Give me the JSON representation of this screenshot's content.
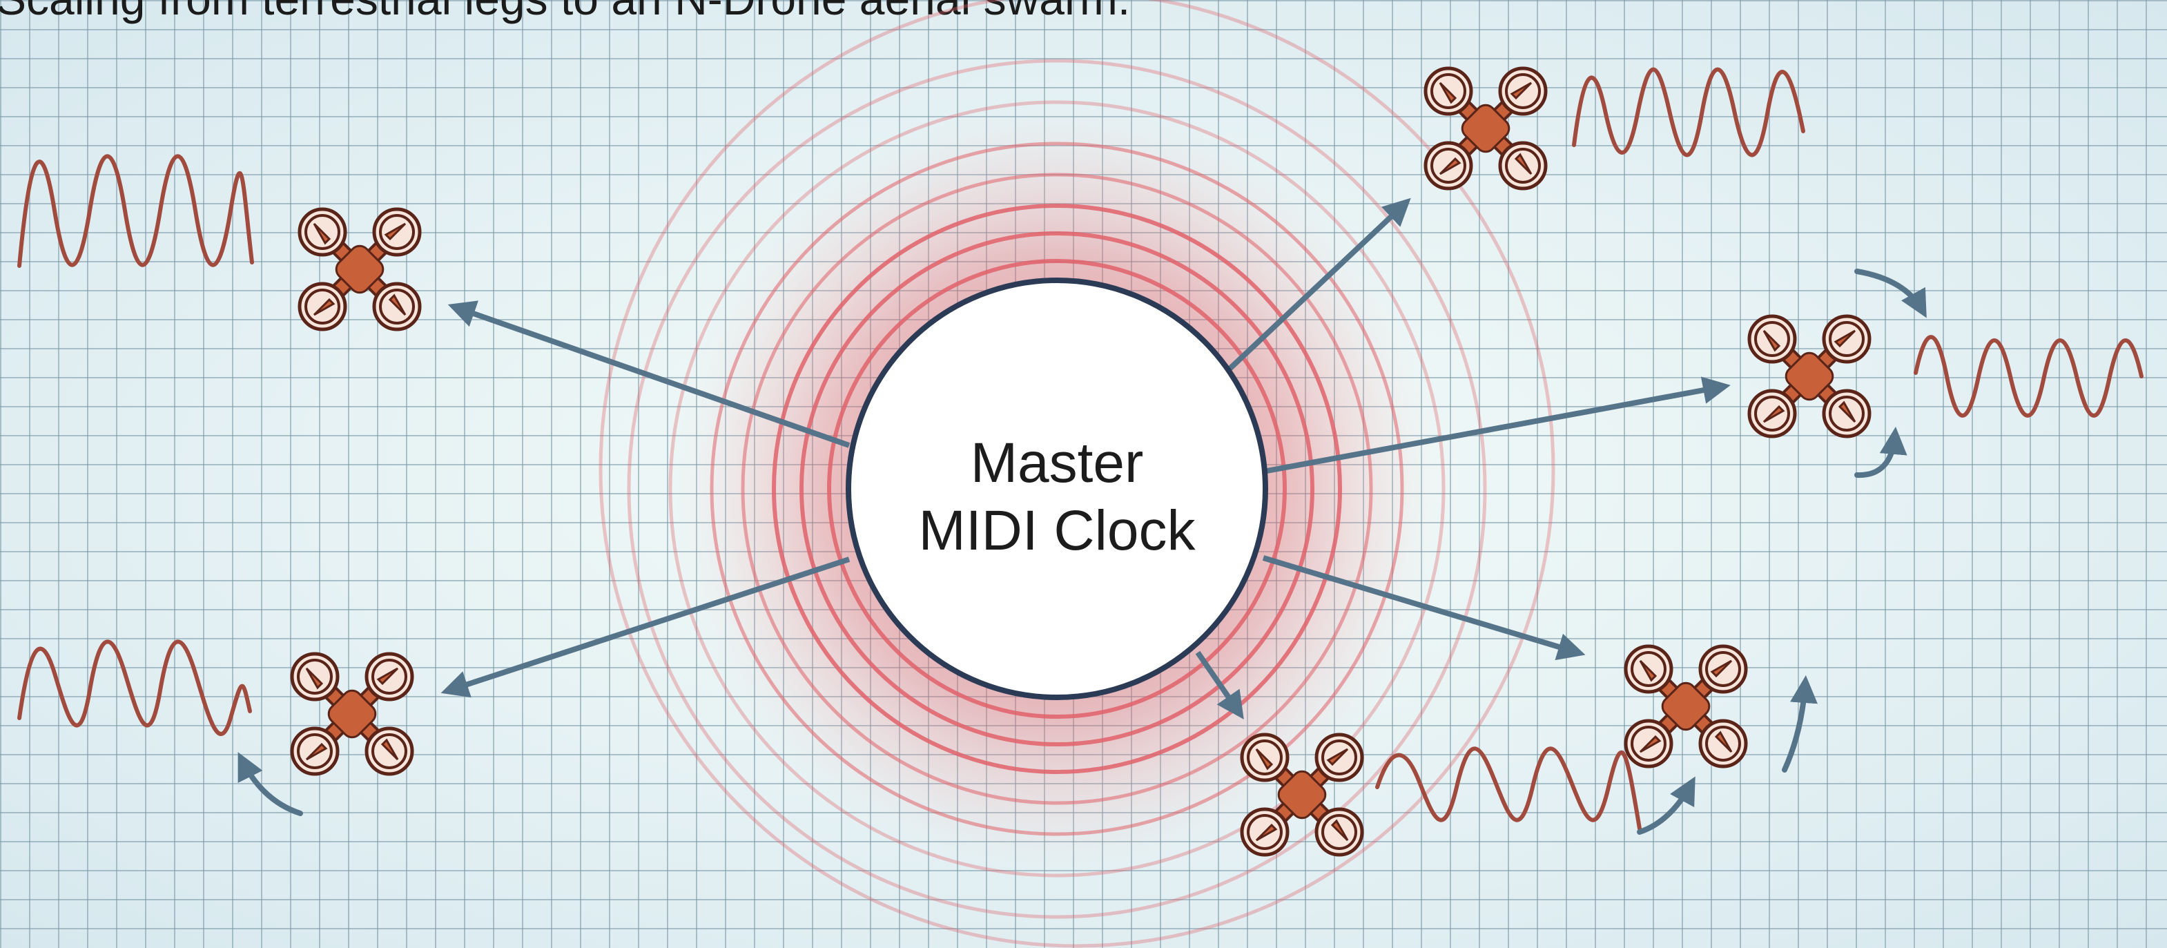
{
  "caption": "Scaling from terrestrial legs to an N-Drone aerial swarm.",
  "hub": {
    "line1": "Master",
    "line2": "MIDI Clock"
  },
  "colors": {
    "background": "#e4f1f4",
    "grid": "#7896a5",
    "pulse_ring": "#e0626a",
    "hub_outline": "#2b3b55",
    "arrow": "#567489",
    "drone_body": "#c8603a",
    "drone_outline": "#5a2418",
    "wave": "#a14a3e"
  },
  "icons": [
    "drone-icon",
    "sine-wave-icon",
    "curved-arrow-icon"
  ]
}
